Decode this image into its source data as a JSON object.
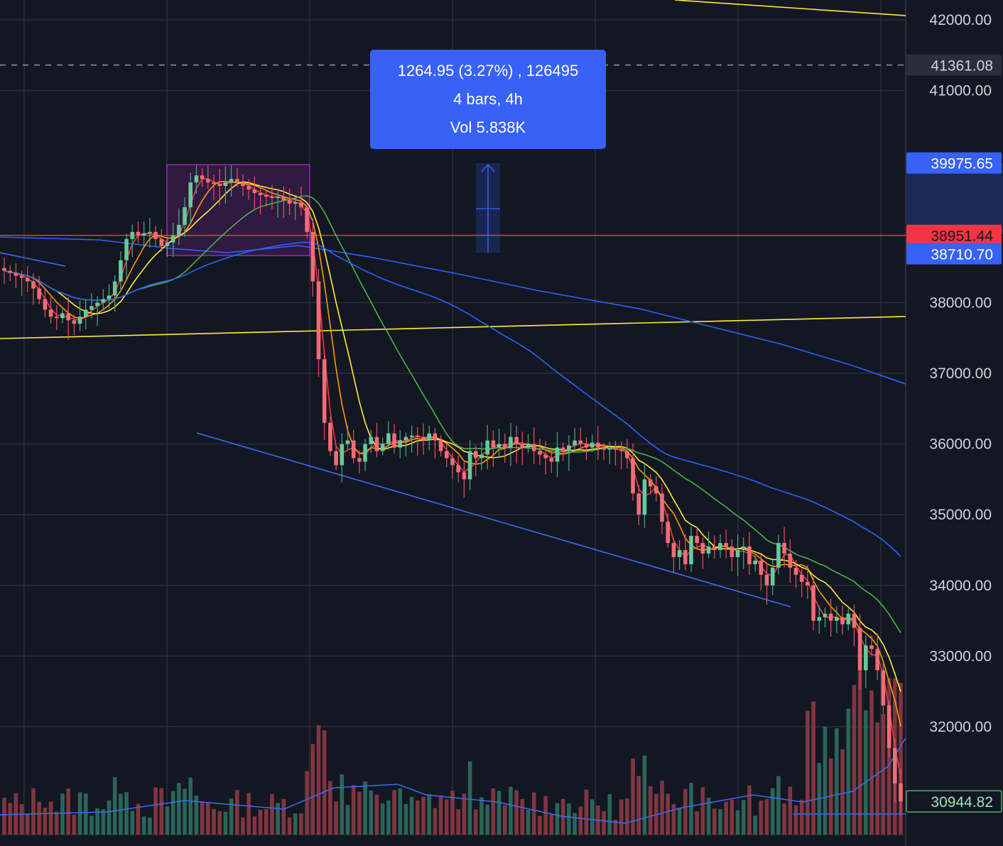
{
  "chart_data": {
    "type": "candlestick",
    "timeframe": "4h",
    "price_axis": {
      "ticks": [
        "42000.00",
        "41000.00",
        "38000.00",
        "37000.00",
        "36000.00",
        "35000.00",
        "34000.00",
        "33000.00",
        "32000.00"
      ],
      "tick_values": [
        42000,
        41000,
        38000,
        37000,
        36000,
        35000,
        34000,
        33000,
        32000
      ],
      "range": [
        30800,
        42300
      ]
    },
    "tags": [
      {
        "label": "41361.08",
        "value": 41361.08,
        "color": "#2a2e39",
        "text_color": "#d1d4dc",
        "line": "dashed"
      },
      {
        "label": "39975.65",
        "value": 39975.65,
        "color": "#3861f6",
        "text_color": "#ffffff"
      },
      {
        "label": "38951.44",
        "value": 38951.44,
        "color": "#f23645",
        "text_color": "#131722",
        "line": "solid-red"
      },
      {
        "label": "38710.70",
        "value": 38710.7,
        "color": "#3861f6",
        "text_color": "#ffffff"
      },
      {
        "label": "30944.82",
        "value": 30944.82,
        "color": "#131722",
        "text_color": "#9fe6b0",
        "border": "#4caf73"
      }
    ],
    "measure": {
      "line1": "1264.95 (3.27%) , 126495",
      "line2": "4 bars, 4h",
      "line3": "Vol 5.838K"
    },
    "candles_close": [
      38450,
      38420,
      38380,
      38350,
      38300,
      38200,
      38050,
      37900,
      37800,
      37780,
      37850,
      37750,
      37700,
      37800,
      37900,
      37950,
      38000,
      38050,
      38100,
      38300,
      38600,
      38900,
      39000,
      38950,
      38980,
      39000,
      38900,
      38800,
      38850,
      38950,
      39100,
      39350,
      39700,
      39800,
      39750,
      39700,
      39680,
      39650,
      39700,
      39750,
      39700,
      39650,
      39600,
      39550,
      39520,
      39500,
      39480,
      39500,
      39450,
      39400,
      39420,
      39350,
      39000,
      38300,
      37200,
      36300,
      35900,
      35700,
      36000,
      36050,
      35800,
      35750,
      36000,
      36100,
      35900,
      36000,
      36150,
      35950,
      36050,
      36100,
      36120,
      36100,
      36050,
      36150,
      36050,
      35900,
      35800,
      35700,
      35600,
      35500,
      35900,
      35800,
      35850,
      36050,
      35950,
      36000,
      35950,
      36100,
      36000,
      35950,
      36000,
      35900,
      35850,
      35800,
      35750,
      35950,
      35900,
      35980,
      36050,
      36000,
      35950,
      36020,
      35950,
      35920,
      35940,
      35920,
      35900,
      35800,
      35300,
      35000,
      35500,
      35400,
      35300,
      34900,
      34600,
      34400,
      34500,
      34300,
      34700,
      34600,
      34450,
      34550,
      34500,
      34600,
      34550,
      34400,
      34500,
      34550,
      34300,
      34350,
      34150,
      34000,
      34250,
      34600,
      34450,
      34250,
      34150,
      34050,
      34000,
      33500,
      33550,
      33600,
      33500,
      33550,
      33450,
      33600,
      33400,
      32800,
      33150,
      33100,
      32800,
      32300,
      31700,
      31200,
      30944
    ],
    "ma_lines": [
      {
        "name": "red",
        "color": "#f23645"
      },
      {
        "name": "orange",
        "color": "#ff9800"
      },
      {
        "name": "yellow",
        "color": "#ffeb3b"
      },
      {
        "name": "green",
        "color": "#4caf50"
      },
      {
        "name": "blue",
        "color": "#2962ff"
      }
    ]
  }
}
